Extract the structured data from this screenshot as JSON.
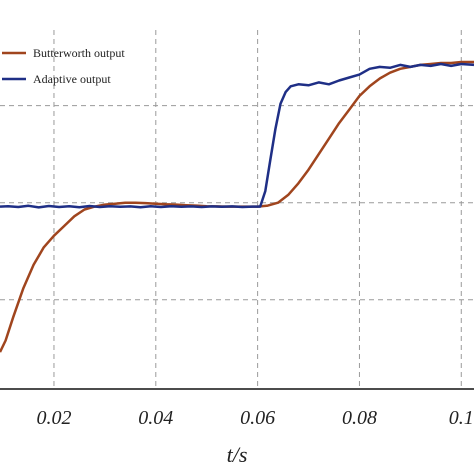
{
  "chart_data": {
    "type": "line",
    "title": "",
    "xlabel": "t/s",
    "ylabel": "",
    "xlim": [
      0.0094,
      0.1025
    ],
    "ylim": [
      -0.46,
      1.39
    ],
    "x_ticks": [
      0.02,
      0.04,
      0.06,
      0.08,
      0.1
    ],
    "x_tick_labels": [
      "0.02",
      "0.04",
      "0.06",
      "0.08",
      "0.1"
    ],
    "y_grid": [
      -0.5,
      0,
      0.5,
      1
    ],
    "grid": true,
    "legend_position": "top-left",
    "series": [
      {
        "name": "Butterworth output",
        "color": "#a0451e",
        "points": [
          [
            0.0094,
            -0.27
          ],
          [
            0.0105,
            -0.21
          ],
          [
            0.012,
            -0.09
          ],
          [
            0.014,
            0.06
          ],
          [
            0.016,
            0.18
          ],
          [
            0.018,
            0.27
          ],
          [
            0.02,
            0.33
          ],
          [
            0.022,
            0.38
          ],
          [
            0.024,
            0.43
          ],
          [
            0.026,
            0.465
          ],
          [
            0.028,
            0.48
          ],
          [
            0.03,
            0.49
          ],
          [
            0.032,
            0.495
          ],
          [
            0.034,
            0.5
          ],
          [
            0.036,
            0.5
          ],
          [
            0.038,
            0.498
          ],
          [
            0.04,
            0.495
          ],
          [
            0.042,
            0.492
          ],
          [
            0.044,
            0.49
          ],
          [
            0.046,
            0.487
          ],
          [
            0.048,
            0.485
          ],
          [
            0.05,
            0.482
          ],
          [
            0.052,
            0.481
          ],
          [
            0.054,
            0.48
          ],
          [
            0.056,
            0.48
          ],
          [
            0.058,
            0.48
          ],
          [
            0.06,
            0.48
          ],
          [
            0.062,
            0.485
          ],
          [
            0.064,
            0.5
          ],
          [
            0.066,
            0.54
          ],
          [
            0.068,
            0.6
          ],
          [
            0.07,
            0.67
          ],
          [
            0.072,
            0.75
          ],
          [
            0.074,
            0.83
          ],
          [
            0.076,
            0.91
          ],
          [
            0.078,
            0.98
          ],
          [
            0.08,
            1.05
          ],
          [
            0.082,
            1.1
          ],
          [
            0.084,
            1.14
          ],
          [
            0.086,
            1.17
          ],
          [
            0.088,
            1.19
          ],
          [
            0.09,
            1.2
          ],
          [
            0.092,
            1.21
          ],
          [
            0.094,
            1.215
          ],
          [
            0.096,
            1.22
          ],
          [
            0.098,
            1.22
          ],
          [
            0.1,
            1.225
          ],
          [
            0.1025,
            1.225
          ]
        ]
      },
      {
        "name": "Adaptive output",
        "color": "#1f2f86",
        "points": [
          [
            0.0094,
            0.48
          ],
          [
            0.011,
            0.482
          ],
          [
            0.013,
            0.478
          ],
          [
            0.015,
            0.484
          ],
          [
            0.017,
            0.476
          ],
          [
            0.019,
            0.483
          ],
          [
            0.021,
            0.478
          ],
          [
            0.023,
            0.482
          ],
          [
            0.025,
            0.477
          ],
          [
            0.027,
            0.483
          ],
          [
            0.029,
            0.478
          ],
          [
            0.031,
            0.482
          ],
          [
            0.033,
            0.479
          ],
          [
            0.035,
            0.481
          ],
          [
            0.037,
            0.477
          ],
          [
            0.039,
            0.482
          ],
          [
            0.041,
            0.478
          ],
          [
            0.043,
            0.482
          ],
          [
            0.045,
            0.479
          ],
          [
            0.047,
            0.481
          ],
          [
            0.049,
            0.478
          ],
          [
            0.051,
            0.481
          ],
          [
            0.053,
            0.479
          ],
          [
            0.055,
            0.481
          ],
          [
            0.057,
            0.478
          ],
          [
            0.059,
            0.48
          ],
          [
            0.0605,
            0.48
          ],
          [
            0.0615,
            0.56
          ],
          [
            0.0625,
            0.72
          ],
          [
            0.0635,
            0.88
          ],
          [
            0.0645,
            1.01
          ],
          [
            0.0655,
            1.07
          ],
          [
            0.0665,
            1.1
          ],
          [
            0.068,
            1.11
          ],
          [
            0.07,
            1.105
          ],
          [
            0.072,
            1.12
          ],
          [
            0.074,
            1.11
          ],
          [
            0.076,
            1.13
          ],
          [
            0.078,
            1.145
          ],
          [
            0.08,
            1.16
          ],
          [
            0.082,
            1.19
          ],
          [
            0.084,
            1.2
          ],
          [
            0.086,
            1.195
          ],
          [
            0.088,
            1.21
          ],
          [
            0.09,
            1.2
          ],
          [
            0.092,
            1.21
          ],
          [
            0.094,
            1.205
          ],
          [
            0.096,
            1.215
          ],
          [
            0.098,
            1.205
          ],
          [
            0.1,
            1.215
          ],
          [
            0.1025,
            1.21
          ]
        ]
      }
    ]
  }
}
